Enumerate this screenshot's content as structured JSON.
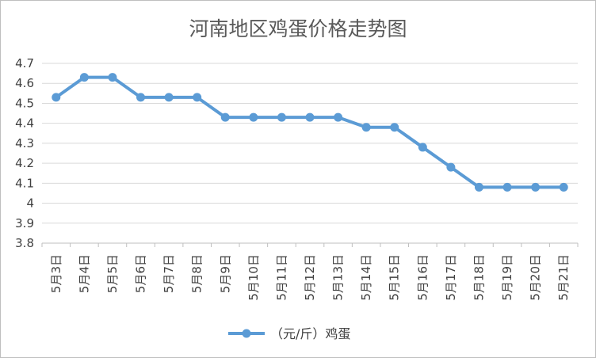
{
  "chart_data": {
    "type": "line",
    "title": "河南地区鸡蛋价格走势图",
    "categories": [
      "5月3日",
      "5月4日",
      "5月5日",
      "5月6日",
      "5月7日",
      "5月8日",
      "5月9日",
      "5月10日",
      "5月11日",
      "5月12日",
      "5月13日",
      "5月14日",
      "5月15日",
      "5月16日",
      "5月17日",
      "5月18日",
      "5月19日",
      "5月20日",
      "5月21日"
    ],
    "series": [
      {
        "name": "（元/斤）鸡蛋",
        "color": "#5b9bd5",
        "values": [
          4.53,
          4.63,
          4.63,
          4.53,
          4.53,
          4.53,
          4.43,
          4.43,
          4.43,
          4.43,
          4.43,
          4.38,
          4.38,
          4.28,
          4.18,
          4.08,
          4.08,
          4.08,
          4.08
        ]
      }
    ],
    "ylim": [
      3.8,
      4.7
    ],
    "yticks": [
      "3.8",
      "3.9",
      "4",
      "4.1",
      "4.2",
      "4.3",
      "4.4",
      "4.5",
      "4.6",
      "4.7"
    ],
    "grid": true,
    "legend_position": "bottom"
  }
}
